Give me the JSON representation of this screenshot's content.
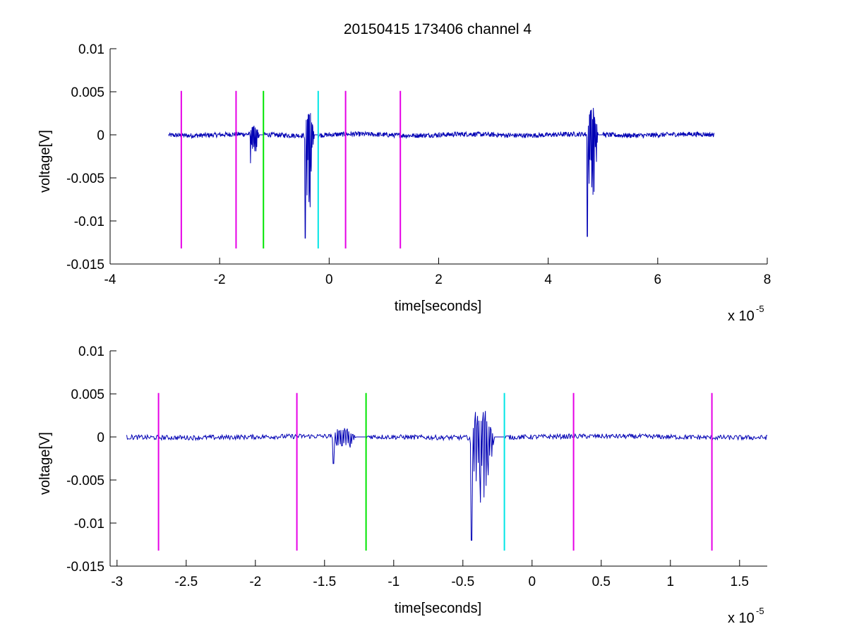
{
  "figure_title": "20150415 173406 channel 4",
  "chart_data": [
    {
      "type": "line",
      "title": "20150415 173406 channel 4",
      "xlabel": "time[seconds]",
      "ylabel": "voltage[V]",
      "x_exponent_label": "x 10",
      "x_exponent": "-5",
      "xlim": [
        -4,
        8
      ],
      "ylim": [
        -0.015,
        0.01
      ],
      "x_ticks": [
        -4,
        -2,
        0,
        2,
        4,
        6,
        8
      ],
      "x_tick_labels": [
        "-4",
        "-2",
        "0",
        "2",
        "4",
        "6",
        "8"
      ],
      "y_ticks": [
        -0.015,
        -0.01,
        -0.005,
        0,
        0.005,
        0.01
      ],
      "y_tick_labels": [
        "-0.015",
        "-0.01",
        "-0.005",
        "0",
        "0.005",
        "0.01"
      ],
      "grid": false,
      "signal": {
        "color": "#0000b4",
        "x_range": [
          -2.93,
          7.03
        ],
        "noise_amplitude": 0.0004,
        "bursts": [
          {
            "x": [
              -1.45,
              -1.2
            ],
            "peak_min": -0.0033,
            "peak_max": 0.0015
          },
          {
            "x": [
              -0.45,
              -0.2
            ],
            "peak_min": -0.012,
            "peak_max": 0.0045
          },
          {
            "x": [
              4.7,
              5.0
            ],
            "peak_min": -0.0118,
            "peak_max": 0.0047
          }
        ]
      },
      "markers": [
        {
          "x": -2.7,
          "color": "#e600e6",
          "y_range": [
            -0.0132,
            0.0051
          ]
        },
        {
          "x": -1.7,
          "color": "#e600e6",
          "y_range": [
            -0.0132,
            0.0051
          ]
        },
        {
          "x": -1.2,
          "color": "#00e600",
          "y_range": [
            -0.0132,
            0.0051
          ]
        },
        {
          "x": -0.2,
          "color": "#00e6e6",
          "y_range": [
            -0.0132,
            0.0051
          ]
        },
        {
          "x": 0.3,
          "color": "#e600e6",
          "y_range": [
            -0.0132,
            0.0051
          ]
        },
        {
          "x": 1.3,
          "color": "#e600e6",
          "y_range": [
            -0.0132,
            0.0051
          ]
        }
      ]
    },
    {
      "type": "line",
      "title": "",
      "xlabel": "time[seconds]",
      "ylabel": "voltage[V]",
      "x_exponent_label": "x 10",
      "x_exponent": "-5",
      "xlim": [
        -3.05,
        1.7
      ],
      "ylim": [
        -0.015,
        0.01
      ],
      "x_ticks": [
        -3,
        -2.5,
        -2,
        -1.5,
        -1,
        -0.5,
        0,
        0.5,
        1,
        1.5
      ],
      "x_tick_labels": [
        "-3",
        "-2.5",
        "-2",
        "-1.5",
        "-1",
        "-0.5",
        "0",
        "0.5",
        "1",
        "1.5"
      ],
      "y_ticks": [
        -0.015,
        -0.01,
        -0.005,
        0,
        0.005,
        0.01
      ],
      "y_tick_labels": [
        "-0.015",
        "-0.01",
        "-0.005",
        "0",
        "0.005",
        "0.01"
      ],
      "grid": false,
      "signal": {
        "color": "#0000b4",
        "x_range": [
          -2.93,
          1.7
        ],
        "noise_amplitude": 0.0004,
        "bursts": [
          {
            "x": [
              -1.45,
              -1.2
            ],
            "peak_min": -0.0031,
            "peak_max": 0.0015
          },
          {
            "x": [
              -0.45,
              -0.2
            ],
            "peak_min": -0.012,
            "peak_max": 0.0045
          }
        ]
      },
      "markers": [
        {
          "x": -2.7,
          "color": "#e600e6",
          "y_range": [
            -0.0132,
            0.0051
          ]
        },
        {
          "x": -1.7,
          "color": "#e600e6",
          "y_range": [
            -0.0132,
            0.0051
          ]
        },
        {
          "x": -1.2,
          "color": "#00e600",
          "y_range": [
            -0.0132,
            0.0051
          ]
        },
        {
          "x": -0.2,
          "color": "#00e6e6",
          "y_range": [
            -0.0132,
            0.0051
          ]
        },
        {
          "x": 0.3,
          "color": "#e600e6",
          "y_range": [
            -0.0132,
            0.0051
          ]
        },
        {
          "x": 1.3,
          "color": "#e600e6",
          "y_range": [
            -0.0132,
            0.0051
          ]
        }
      ]
    }
  ]
}
